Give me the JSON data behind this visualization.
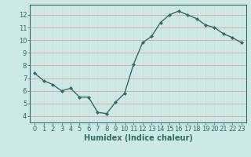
{
  "x": [
    0,
    1,
    2,
    3,
    4,
    5,
    6,
    7,
    8,
    9,
    10,
    11,
    12,
    13,
    14,
    15,
    16,
    17,
    18,
    19,
    20,
    21,
    22,
    23
  ],
  "y": [
    7.4,
    6.8,
    6.5,
    6.0,
    6.2,
    5.5,
    5.5,
    4.3,
    4.2,
    5.1,
    5.8,
    8.1,
    9.8,
    10.3,
    11.4,
    12.0,
    12.3,
    12.0,
    11.7,
    11.2,
    11.0,
    10.5,
    10.2,
    9.8
  ],
  "line_color": "#2e6e65",
  "marker": "D",
  "markersize": 2.0,
  "linewidth": 1.0,
  "bg_color": "#cce9e5",
  "grid_color": "#e8c8c8",
  "axis_color": "#2e6e65",
  "xlabel": "Humidex (Indice chaleur)",
  "ylabel": "",
  "xlim": [
    -0.5,
    23.5
  ],
  "ylim": [
    3.5,
    12.8
  ],
  "yticks": [
    4,
    5,
    6,
    7,
    8,
    9,
    10,
    11,
    12
  ],
  "xticks": [
    0,
    1,
    2,
    3,
    4,
    5,
    6,
    7,
    8,
    9,
    10,
    11,
    12,
    13,
    14,
    15,
    16,
    17,
    18,
    19,
    20,
    21,
    22,
    23
  ],
  "xlabel_fontsize": 7.0,
  "tick_fontsize": 6.0,
  "tick_color": "#2e6e65",
  "label_color": "#2e6e65"
}
